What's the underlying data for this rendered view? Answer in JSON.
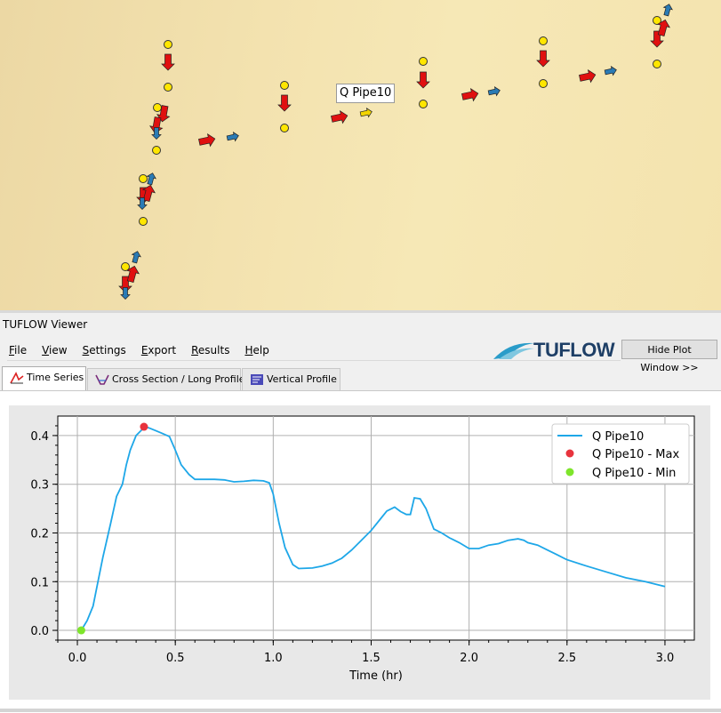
{
  "map": {
    "label_box": "Q Pipe10",
    "nodes_color": "#ffe600",
    "arrow_colors": {
      "max": "#e01010",
      "current": "#2a7bb5",
      "selected": "#f2d400"
    }
  },
  "viewer": {
    "title": "TUFLOW Viewer",
    "menu": [
      {
        "u": "F",
        "rest": "ile"
      },
      {
        "u": "V",
        "rest": "iew"
      },
      {
        "u": "S",
        "rest": "ettings"
      },
      {
        "u": "E",
        "rest": "xport"
      },
      {
        "u": "R",
        "rest": "esults"
      },
      {
        "u": "H",
        "rest": "elp"
      }
    ],
    "logo_text": "TUFLOW",
    "hide_plot_label": "Hide Plot Window >>",
    "tabs": [
      {
        "label": "Time Series",
        "icon": "time-series-icon"
      },
      {
        "label": "Cross Section / Long Profile",
        "icon": "cross-section-icon"
      },
      {
        "label": "Vertical Profile",
        "icon": "vertical-profile-icon"
      }
    ]
  },
  "chart_data": {
    "type": "line",
    "xlabel": "Time (hr)",
    "ylabel": "",
    "xlim": [
      -0.1,
      3.15
    ],
    "ylim": [
      -0.02,
      0.44
    ],
    "x_ticks": [
      "0.0",
      "0.5",
      "1.0",
      "1.5",
      "2.0",
      "2.5",
      "3.0"
    ],
    "y_ticks": [
      "0.0",
      "0.1",
      "0.2",
      "0.3",
      "0.4"
    ],
    "grid": true,
    "legend_position": "top-right",
    "series": [
      {
        "name": "Q Pipe10",
        "color": "#1ea7e8",
        "x": [
          0.02,
          0.05,
          0.08,
          0.1,
          0.13,
          0.17,
          0.2,
          0.23,
          0.25,
          0.27,
          0.3,
          0.33,
          0.35,
          0.37,
          0.4,
          0.43,
          0.47,
          0.5,
          0.53,
          0.57,
          0.6,
          0.7,
          0.75,
          0.8,
          0.85,
          0.9,
          0.95,
          0.98,
          1.0,
          1.03,
          1.06,
          1.1,
          1.13,
          1.2,
          1.25,
          1.3,
          1.35,
          1.4,
          1.45,
          1.5,
          1.55,
          1.58,
          1.62,
          1.65,
          1.68,
          1.7,
          1.72,
          1.75,
          1.78,
          1.82,
          1.86,
          1.9,
          1.95,
          2.0,
          2.05,
          2.1,
          2.15,
          2.2,
          2.25,
          2.28,
          2.3,
          2.35,
          2.4,
          2.45,
          2.5,
          2.6,
          2.7,
          2.8,
          2.9,
          3.0
        ],
        "y": [
          0.0,
          0.02,
          0.05,
          0.09,
          0.15,
          0.22,
          0.275,
          0.3,
          0.34,
          0.37,
          0.4,
          0.412,
          0.418,
          0.415,
          0.41,
          0.405,
          0.398,
          0.37,
          0.34,
          0.32,
          0.31,
          0.31,
          0.309,
          0.305,
          0.306,
          0.308,
          0.307,
          0.303,
          0.28,
          0.22,
          0.17,
          0.135,
          0.127,
          0.128,
          0.132,
          0.138,
          0.148,
          0.165,
          0.185,
          0.205,
          0.23,
          0.245,
          0.253,
          0.244,
          0.238,
          0.238,
          0.272,
          0.27,
          0.25,
          0.208,
          0.2,
          0.19,
          0.18,
          0.168,
          0.168,
          0.175,
          0.178,
          0.185,
          0.188,
          0.185,
          0.18,
          0.175,
          0.165,
          0.155,
          0.145,
          0.132,
          0.12,
          0.108,
          0.1,
          0.09
        ]
      }
    ],
    "markers": [
      {
        "name": "Q Pipe10 - Max",
        "x": 0.34,
        "y": 0.418,
        "color": "#e8333d"
      },
      {
        "name": "Q Pipe10 - Min",
        "x": 0.02,
        "y": 0.0,
        "color": "#7ee52b"
      }
    ]
  }
}
